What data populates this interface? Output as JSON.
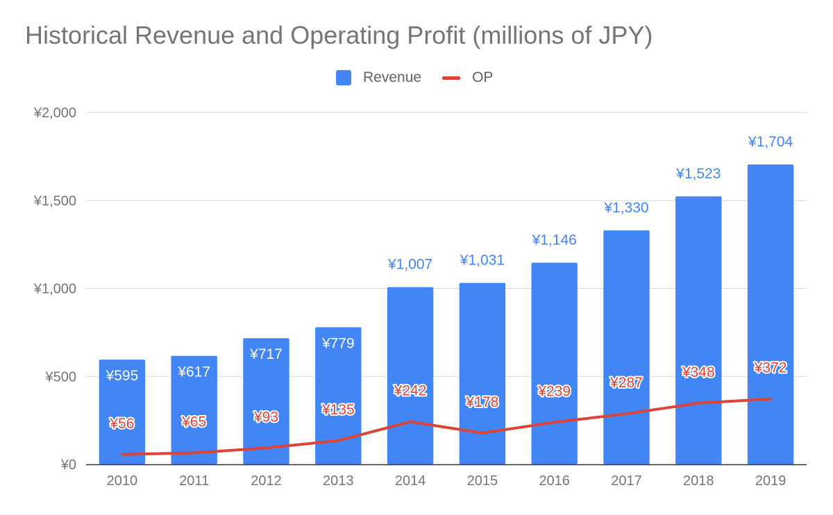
{
  "chart_data": {
    "type": "bar",
    "title": "Historical Revenue and Operating Profit (millions of JPY)",
    "categories": [
      "2010",
      "2011",
      "2012",
      "2013",
      "2014",
      "2015",
      "2016",
      "2017",
      "2018",
      "2019"
    ],
    "series": [
      {
        "name": "Revenue",
        "type": "bar",
        "color": "#4285f4",
        "values": [
          595,
          617,
          717,
          779,
          1007,
          1031,
          1146,
          1330,
          1523,
          1704
        ],
        "labels": [
          "¥595",
          "¥617",
          "¥717",
          "¥779",
          "¥1,007",
          "¥1,031",
          "¥1,146",
          "¥1,330",
          "¥1,523",
          "¥1,704"
        ]
      },
      {
        "name": "OP",
        "type": "line",
        "color": "#db4437",
        "values": [
          56,
          65,
          93,
          135,
          242,
          178,
          239,
          287,
          348,
          372
        ],
        "labels": [
          "¥56",
          "¥65",
          "¥93",
          "¥135",
          "¥242",
          "¥178",
          "¥239",
          "¥287",
          "¥348",
          "¥372"
        ]
      }
    ],
    "ylim": [
      0,
      2000
    ],
    "yticks": [
      0,
      500,
      1000,
      1500,
      2000
    ],
    "ytick_labels": [
      "¥0",
      "¥500",
      "¥1,000",
      "¥1,500",
      "¥2,000"
    ],
    "legend_position": "top-center",
    "grid": true
  }
}
